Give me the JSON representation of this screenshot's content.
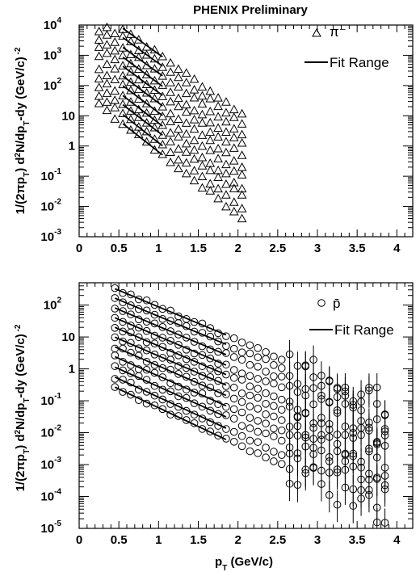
{
  "figure": {
    "title": "PHENIX Preliminary",
    "xlabel": "p_T (GeV/c)",
    "ylabel": "1/(2πp_T) d²N/dp_T dy (GeV/c)⁻²"
  },
  "colors": {
    "ink": "#000000",
    "background": "#ffffff"
  },
  "chart_data": [
    {
      "type": "scatter",
      "title": "PHENIX Preliminary",
      "xlabel": "",
      "ylabel": "1/(2πp_T) d²N/dp_T dy (GeV/c)⁻²",
      "xlim": [
        0,
        4.2
      ],
      "ylim": [
        0.001,
        10000
      ],
      "yscale": "log",
      "marker": "triangle",
      "x_ticks": [
        "0",
        "0.5",
        "1",
        "1.5",
        "2",
        "2.5",
        "3",
        "3.5",
        "4"
      ],
      "y_ticks": [
        {
          "base": "10",
          "exp": "-3"
        },
        {
          "base": "10",
          "exp": "-2"
        },
        {
          "base": "10",
          "exp": "-1"
        },
        {
          "base": "1",
          "exp": ""
        },
        {
          "base": "10",
          "exp": ""
        },
        {
          "base": "10",
          "exp": "2"
        },
        {
          "base": "10",
          "exp": "3"
        },
        {
          "base": "10",
          "exp": "4"
        }
      ],
      "legend": {
        "position": "top-right",
        "marker_label": "π⁻",
        "line_label": "Fit Range"
      },
      "fit_range": [
        0.55,
        1.05
      ],
      "series_rule": "y = A * exp(-p_T / T), one spectrum per centrality bin, offset by factor 2",
      "series": [
        {
          "A": 85000,
          "T": 0.23,
          "xmax": 2.05
        },
        {
          "A": 42000,
          "T": 0.23,
          "xmax": 2.05
        },
        {
          "A": 20000,
          "T": 0.23,
          "xmax": 2.05
        },
        {
          "A": 10000,
          "T": 0.225,
          "xmax": 2.05
        },
        {
          "A": 5000,
          "T": 0.225,
          "xmax": 2.05
        },
        {
          "A": 2500,
          "T": 0.22,
          "xmax": 2.05
        },
        {
          "A": 1200,
          "T": 0.22,
          "xmax": 2.05
        },
        {
          "A": 600,
          "T": 0.215,
          "xmax": 2.05
        },
        {
          "A": 300,
          "T": 0.215,
          "xmax": 2.05
        },
        {
          "A": 150,
          "T": 0.21,
          "xmax": 2.05
        },
        {
          "A": 75,
          "T": 0.21,
          "xmax": 2.05
        }
      ]
    },
    {
      "type": "scatter",
      "title": "",
      "xlabel": "p_T (GeV/c)",
      "ylabel": "1/(2πp_T) d²N/dp_T dy (GeV/c)⁻²",
      "xlim": [
        0,
        4.2
      ],
      "ylim": [
        1e-05,
        500
      ],
      "yscale": "log",
      "marker": "circle",
      "x_ticks": [
        "0",
        "0.5",
        "1",
        "1.5",
        "2",
        "2.5",
        "3",
        "3.5",
        "4"
      ],
      "y_ticks": [
        {
          "base": "10",
          "exp": "-5"
        },
        {
          "base": "10",
          "exp": "-4"
        },
        {
          "base": "10",
          "exp": "-3"
        },
        {
          "base": "10",
          "exp": "-2"
        },
        {
          "base": "10",
          "exp": "-1"
        },
        {
          "base": "1",
          "exp": ""
        },
        {
          "base": "10",
          "exp": ""
        },
        {
          "base": "10",
          "exp": "2"
        }
      ],
      "legend": {
        "position": "top-right",
        "marker_label": "p̄",
        "line_label": "Fit Range"
      },
      "fit_range": [
        0.45,
        1.85
      ],
      "series_rule": "y = A * exp(-p_T / T), one spectrum per centrality bin, offset by factor 2",
      "series": [
        {
          "A": 950,
          "T": 0.42,
          "xmax": 3.85
        },
        {
          "A": 480,
          "T": 0.42,
          "xmax": 3.85
        },
        {
          "A": 240,
          "T": 0.415,
          "xmax": 3.85
        },
        {
          "A": 120,
          "T": 0.41,
          "xmax": 3.85
        },
        {
          "A": 60,
          "T": 0.41,
          "xmax": 3.85
        },
        {
          "A": 30,
          "T": 0.405,
          "xmax": 3.85
        },
        {
          "A": 15,
          "T": 0.4,
          "xmax": 3.85
        },
        {
          "A": 7.5,
          "T": 0.395,
          "xmax": 3.85
        },
        {
          "A": 3.6,
          "T": 0.39,
          "xmax": 3.85
        },
        {
          "A": 1.8,
          "T": 0.38,
          "xmax": 3.85
        },
        {
          "A": 0.9,
          "T": 0.37,
          "xmax": 3.85
        }
      ]
    }
  ]
}
